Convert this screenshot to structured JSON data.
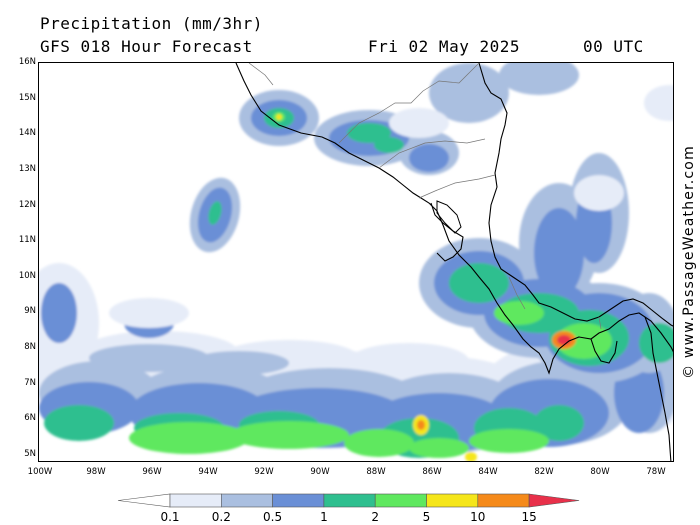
{
  "header": {
    "title": "Precipitation (mm/3hr)",
    "subtitle": "GFS 018 Hour Forecast",
    "date": "Fri 02 May 2025",
    "time": "00 UTC"
  },
  "credit": "© www.PassageWeather.com",
  "map": {
    "lat_labels": [
      "16N",
      "15N",
      "14N",
      "13N",
      "12N",
      "11N",
      "10N",
      "9N",
      "8N",
      "7N",
      "6N",
      "5N"
    ],
    "lon_labels": [
      "100W",
      "98W",
      "96W",
      "94W",
      "92W",
      "90W",
      "88W",
      "86W",
      "84W",
      "82W",
      "80W",
      "78W"
    ],
    "colors": {
      "sea": "#ffffff",
      "coastline": "#000000",
      "border": "#888888"
    }
  },
  "legend": {
    "labels": [
      "0.1",
      "0.2",
      "0.5",
      "1",
      "2",
      "5",
      "10",
      "15"
    ],
    "colors": [
      "#ffffff",
      "#e6ecf8",
      "#aabfe0",
      "#6a8fd6",
      "#2fbf8f",
      "#5fe85f",
      "#f5e61a",
      "#f58a1a",
      "#e8304a"
    ]
  }
}
